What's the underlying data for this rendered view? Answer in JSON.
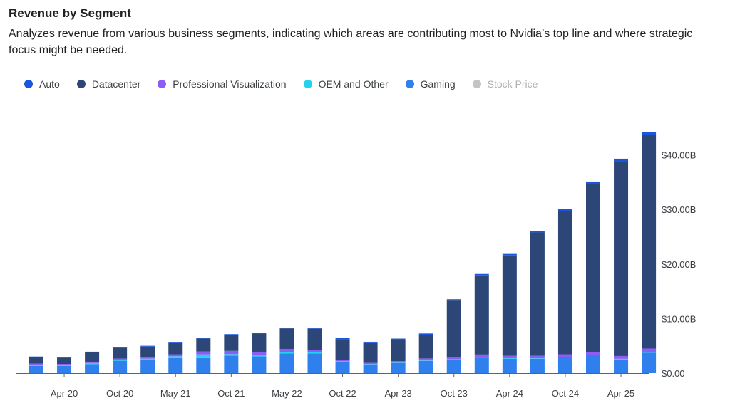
{
  "title": "Revenue by Segment",
  "subtitle": "Analyzes revenue from various business segments, indicating which areas are contributing most to Nvidia’s top line and where strategic focus might be needed.",
  "legend": [
    {
      "label": "Auto",
      "color": "#1a56db",
      "muted": false
    },
    {
      "label": "Datacenter",
      "color": "#2c4677",
      "muted": false
    },
    {
      "label": "Professional Visualization",
      "color": "#8b5cf6",
      "muted": false
    },
    {
      "label": "OEM and Other",
      "color": "#22d3ee",
      "muted": false
    },
    {
      "label": "Gaming",
      "color": "#2f80ed",
      "muted": false
    },
    {
      "label": "Stock Price",
      "color": "#c4c4c4",
      "muted": true
    }
  ],
  "chart_data": {
    "type": "bar",
    "stacked": true,
    "x_tick_labels": [
      "Apr 20",
      "Oct 20",
      "May 21",
      "Oct 21",
      "May 22",
      "Oct 22",
      "Apr 23",
      "Oct 23",
      "Apr 24",
      "Oct 24",
      "Apr 25"
    ],
    "y_tick_labels": [
      "$0.00",
      "$10.00B",
      "$20.00B",
      "$30.00B",
      "$40.00B"
    ],
    "y_axis_position": "right",
    "ylim": [
      0,
      44
    ],
    "grid": false,
    "legend_position": "top-left",
    "series": [
      {
        "name": "Gaming",
        "color": "#2f80ed",
        "values": [
          1.34,
          1.34,
          1.66,
          2.27,
          2.5,
          2.76,
          2.76,
          3.22,
          3.06,
          3.62,
          3.62,
          2.04,
          1.57,
          1.83,
          2.24,
          2.49,
          2.86,
          2.65,
          2.65,
          2.88,
          3.28,
          2.5,
          3.76
        ]
      },
      {
        "name": "OEM and Other",
        "color": "#22d3ee",
        "values": [
          0.1,
          0.15,
          0.19,
          0.17,
          0.15,
          0.33,
          0.67,
          0.27,
          0.22,
          0.2,
          0.18,
          0.14,
          0.08,
          0.08,
          0.07,
          0.07,
          0.09,
          0.09,
          0.08,
          0.09,
          0.09,
          0.13,
          0.11
        ]
      },
      {
        "name": "Professional Visualization",
        "color": "#8b5cf6",
        "values": [
          0.3,
          0.2,
          0.2,
          0.24,
          0.31,
          0.37,
          0.52,
          0.58,
          0.64,
          0.62,
          0.5,
          0.2,
          0.23,
          0.3,
          0.38,
          0.42,
          0.46,
          0.43,
          0.45,
          0.49,
          0.51,
          0.51,
          0.64
        ]
      },
      {
        "name": "Datacenter",
        "color": "#2c4677",
        "values": [
          1.14,
          1.14,
          1.75,
          1.9,
          1.9,
          2.05,
          2.37,
          2.94,
          3.26,
          3.75,
          3.83,
          3.81,
          3.62,
          3.83,
          4.28,
          10.32,
          14.51,
          18.4,
          22.6,
          26.3,
          30.8,
          35.6,
          39.1
        ]
      },
      {
        "name": "Auto",
        "color": "#1a56db",
        "values": [
          0.16,
          0.11,
          0.13,
          0.14,
          0.15,
          0.15,
          0.15,
          0.14,
          0.14,
          0.14,
          0.14,
          0.22,
          0.25,
          0.29,
          0.3,
          0.25,
          0.26,
          0.28,
          0.33,
          0.35,
          0.45,
          0.57,
          0.59
        ]
      }
    ]
  }
}
